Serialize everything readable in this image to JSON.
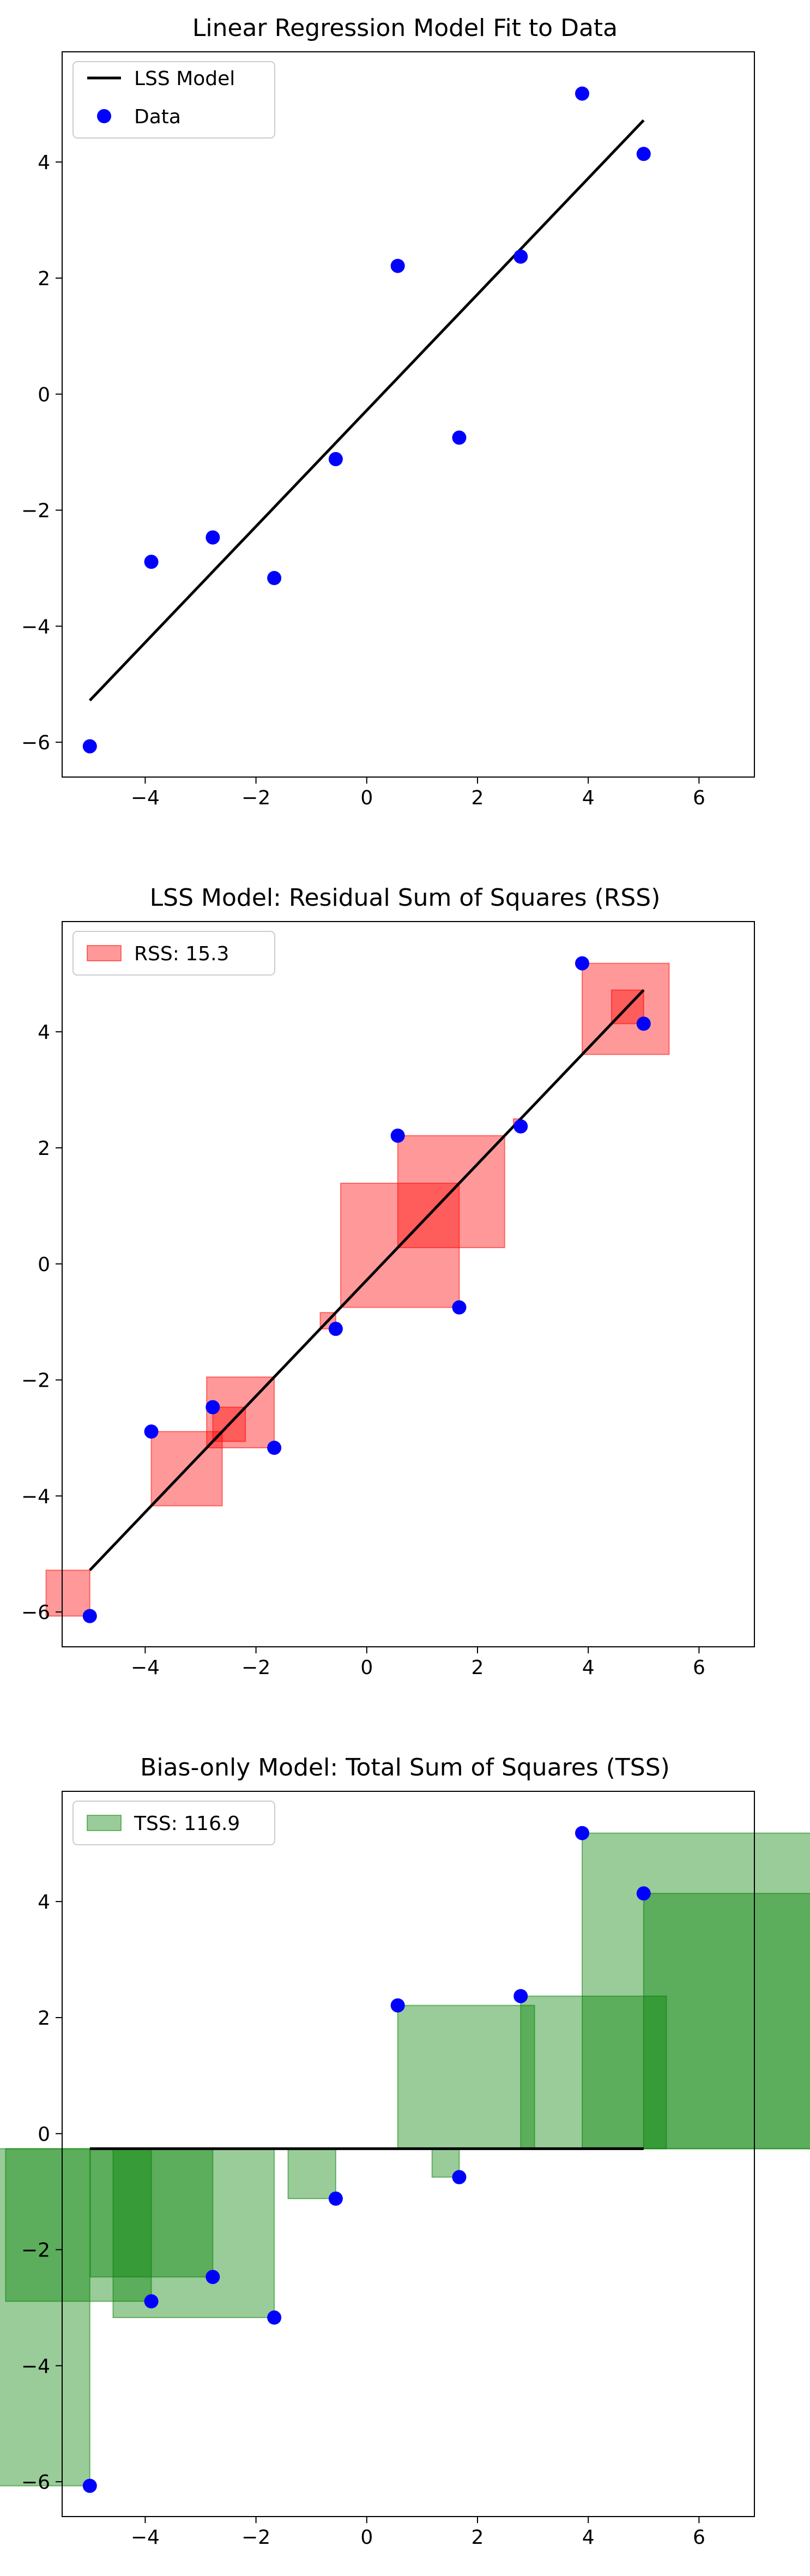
{
  "chart_data": [
    {
      "type": "scatter",
      "title": "Linear Regression Model Fit to Data",
      "xlim": [
        -5.5,
        7.0
      ],
      "ylim": [
        -6.6,
        5.9
      ],
      "xticks": [
        -4,
        -2,
        0,
        2,
        4,
        6
      ],
      "yticks": [
        -6,
        -4,
        -2,
        0,
        2,
        4
      ],
      "xtick_labels": [
        "−4",
        "−2",
        "0",
        "2",
        "4",
        "6"
      ],
      "ytick_labels": [
        "−6",
        "−4",
        "−2",
        "0",
        "2",
        "4"
      ],
      "grid": false,
      "legend_position": "top-left",
      "series": [
        {
          "name": "LSS Model",
          "kind": "line",
          "color": "#000000",
          "x": [
            -5.0,
            5.0
          ],
          "y": [
            -5.28,
            4.72
          ]
        },
        {
          "name": "Data",
          "kind": "scatter",
          "color": "#0000ff",
          "x": [
            -5.0,
            -3.89,
            -2.78,
            -1.67,
            -0.56,
            0.56,
            1.67,
            2.78,
            3.89,
            5.0
          ],
          "y": [
            -6.07,
            -2.89,
            -2.47,
            -3.17,
            -1.12,
            2.21,
            -0.75,
            2.37,
            5.18,
            4.14
          ]
        }
      ]
    },
    {
      "type": "scatter",
      "title": "LSS Model: Residual Sum of Squares (RSS)",
      "xlim": [
        -5.5,
        7.0
      ],
      "ylim": [
        -6.6,
        5.9
      ],
      "xticks": [
        -4,
        -2,
        0,
        2,
        4,
        6
      ],
      "yticks": [
        -6,
        -4,
        -2,
        0,
        2,
        4
      ],
      "xtick_labels": [
        "−4",
        "−2",
        "0",
        "2",
        "4",
        "6"
      ],
      "ytick_labels": [
        "−6",
        "−4",
        "−2",
        "0",
        "2",
        "4"
      ],
      "grid": false,
      "legend_position": "top-left",
      "legend": [
        {
          "label": "RSS: 15.3",
          "color": "#ff0000"
        }
      ],
      "square_color": "#ff0000",
      "square_fill_opacity": 0.4,
      "model_line": {
        "x": [
          -5.0,
          5.0
        ],
        "y": [
          -5.28,
          4.72
        ]
      },
      "points": {
        "x": [
          -5.0,
          -3.89,
          -2.78,
          -1.67,
          -0.56,
          0.56,
          1.67,
          2.78,
          3.89,
          5.0
        ],
        "y": [
          -6.07,
          -2.89,
          -2.47,
          -3.17,
          -1.12,
          2.21,
          -0.75,
          2.37,
          5.18,
          4.14
        ]
      },
      "rss": 15.3
    },
    {
      "type": "scatter",
      "title": "Bias-only Model: Total Sum of Squares (TSS)",
      "xlim": [
        -5.5,
        7.0
      ],
      "ylim": [
        -6.6,
        5.9
      ],
      "xticks": [
        -4,
        -2,
        0,
        2,
        4,
        6
      ],
      "yticks": [
        -6,
        -4,
        -2,
        0,
        2,
        4
      ],
      "xtick_labels": [
        "−4",
        "−2",
        "0",
        "2",
        "4",
        "6"
      ],
      "ytick_labels": [
        "−6",
        "−4",
        "−2",
        "0",
        "2",
        "4"
      ],
      "grid": false,
      "legend_position": "top-left",
      "legend": [
        {
          "label": "TSS: 116.9",
          "color": "#008000"
        }
      ],
      "square_color": "#008000",
      "square_fill_opacity": 0.4,
      "model_line": {
        "x": [
          -5.0,
          5.0
        ],
        "y": [
          -0.26,
          -0.26
        ]
      },
      "points": {
        "x": [
          -5.0,
          -3.89,
          -2.78,
          -1.67,
          -0.56,
          0.56,
          1.67,
          2.78,
          3.89,
          5.0
        ],
        "y": [
          -6.07,
          -2.89,
          -2.47,
          -3.17,
          -1.12,
          2.21,
          -0.75,
          2.37,
          5.18,
          4.14
        ]
      },
      "tss": 116.9
    }
  ]
}
